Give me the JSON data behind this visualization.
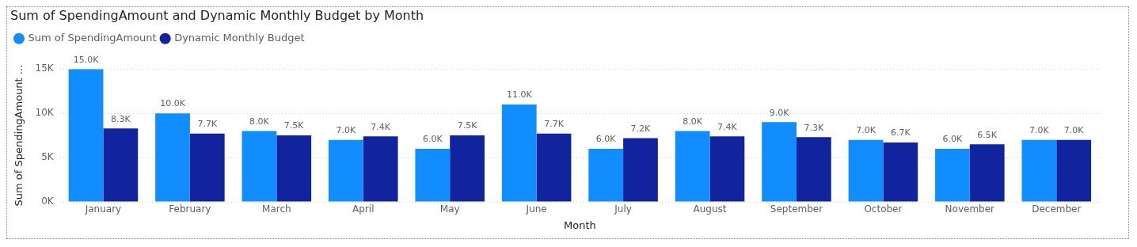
{
  "chart_data": {
    "type": "bar",
    "title": "Sum of SpendingAmount and Dynamic Monthly Budget by Month",
    "xlabel": "Month",
    "ylabel": "Sum of SpendingAmount ...",
    "categories": [
      "January",
      "February",
      "March",
      "April",
      "May",
      "June",
      "July",
      "August",
      "September",
      "October",
      "November",
      "December"
    ],
    "series": [
      {
        "name": "Sum of SpendingAmount",
        "color": "#118dff",
        "values": [
          15000,
          10000,
          8000,
          7000,
          6000,
          11000,
          6000,
          8000,
          9000,
          7000,
          6000,
          7000
        ],
        "value_labels": [
          "15.0K",
          "10.0K",
          "8.0K",
          "7.0K",
          "6.0K",
          "11.0K",
          "6.0K",
          "8.0K",
          "9.0K",
          "7.0K",
          "6.0K",
          "7.0K"
        ]
      },
      {
        "name": "Dynamic Monthly Budget",
        "color": "#12239e",
        "values": [
          8300,
          7700,
          7500,
          7400,
          7500,
          7700,
          7200,
          7400,
          7300,
          6700,
          6500,
          7000
        ],
        "value_labels": [
          "8.3K",
          "7.7K",
          "7.5K",
          "7.4K",
          "7.5K",
          "7.7K",
          "7.2K",
          "7.4K",
          "7.3K",
          "6.7K",
          "6.5K",
          "7.0K"
        ]
      }
    ],
    "yticks": [
      {
        "value": 0,
        "label": "0K"
      },
      {
        "value": 5000,
        "label": "5K"
      },
      {
        "value": 10000,
        "label": "10K"
      },
      {
        "value": 15000,
        "label": "15K"
      }
    ],
    "ylim": [
      0,
      15000
    ],
    "grid": "y",
    "legend": "top left"
  }
}
